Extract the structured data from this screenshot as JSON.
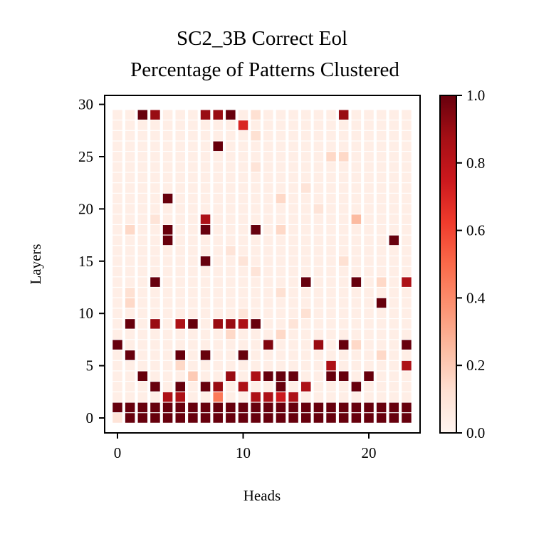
{
  "chart_data": {
    "type": "heatmap",
    "title": [
      "SC2_3B Correct Eol",
      "Percentage of Patterns Clustered"
    ],
    "xlabel": "Heads",
    "ylabel": "Layers",
    "xlim": [
      0,
      23
    ],
    "ylim": [
      0,
      30
    ],
    "x_ticks": [
      "0",
      "10",
      "20"
    ],
    "y_ticks": [
      "0",
      "5",
      "10",
      "15",
      "20",
      "25",
      "30"
    ],
    "colorbar": {
      "colormap": "Reds",
      "min": 0.0,
      "max": 1.0,
      "ticks": [
        "0.0",
        "0.2",
        "0.4",
        "0.6",
        "0.8",
        "1.0"
      ]
    },
    "background_value": 0.04,
    "cells": [
      [
        0,
        0,
        0.1
      ],
      [
        1,
        0,
        1.0
      ],
      [
        2,
        0,
        1.0
      ],
      [
        3,
        0,
        1.0
      ],
      [
        4,
        0,
        1.0
      ],
      [
        5,
        0,
        1.0
      ],
      [
        6,
        0,
        1.0
      ],
      [
        7,
        0,
        1.0
      ],
      [
        8,
        0,
        1.0
      ],
      [
        9,
        0,
        1.0
      ],
      [
        10,
        0,
        1.0
      ],
      [
        11,
        0,
        1.0
      ],
      [
        12,
        0,
        1.0
      ],
      [
        13,
        0,
        1.0
      ],
      [
        14,
        0,
        1.0
      ],
      [
        15,
        0,
        1.0
      ],
      [
        16,
        0,
        1.0
      ],
      [
        17,
        0,
        1.0
      ],
      [
        18,
        0,
        1.0
      ],
      [
        19,
        0,
        1.0
      ],
      [
        20,
        0,
        1.0
      ],
      [
        21,
        0,
        1.0
      ],
      [
        22,
        0,
        1.0
      ],
      [
        23,
        0,
        1.0
      ],
      [
        0,
        1,
        1.0
      ],
      [
        1,
        1,
        1.0
      ],
      [
        2,
        1,
        1.0
      ],
      [
        3,
        1,
        1.0
      ],
      [
        4,
        1,
        1.0
      ],
      [
        5,
        1,
        1.0
      ],
      [
        6,
        1,
        1.0
      ],
      [
        7,
        1,
        1.0
      ],
      [
        8,
        1,
        1.0
      ],
      [
        9,
        1,
        1.0
      ],
      [
        10,
        1,
        1.0
      ],
      [
        11,
        1,
        1.0
      ],
      [
        12,
        1,
        1.0
      ],
      [
        13,
        1,
        1.0
      ],
      [
        14,
        1,
        1.0
      ],
      [
        15,
        1,
        1.0
      ],
      [
        16,
        1,
        1.0
      ],
      [
        17,
        1,
        1.0
      ],
      [
        18,
        1,
        1.0
      ],
      [
        19,
        1,
        1.0
      ],
      [
        20,
        1,
        1.0
      ],
      [
        21,
        1,
        1.0
      ],
      [
        22,
        1,
        1.0
      ],
      [
        23,
        1,
        1.0
      ],
      [
        4,
        2,
        0.85
      ],
      [
        5,
        2,
        0.85
      ],
      [
        8,
        2,
        0.45
      ],
      [
        11,
        2,
        0.85
      ],
      [
        12,
        2,
        0.85
      ],
      [
        13,
        2,
        0.75
      ],
      [
        14,
        2,
        0.85
      ],
      [
        3,
        3,
        1.0
      ],
      [
        5,
        3,
        1.0
      ],
      [
        7,
        3,
        1.0
      ],
      [
        8,
        3,
        0.9
      ],
      [
        10,
        3,
        0.85
      ],
      [
        13,
        3,
        1.0
      ],
      [
        15,
        3,
        0.85
      ],
      [
        19,
        3,
        1.0
      ],
      [
        2,
        4,
        1.0
      ],
      [
        6,
        4,
        0.2
      ],
      [
        9,
        4,
        0.9
      ],
      [
        11,
        4,
        0.85
      ],
      [
        12,
        4,
        1.0
      ],
      [
        13,
        4,
        1.0
      ],
      [
        14,
        4,
        1.0
      ],
      [
        17,
        4,
        1.0
      ],
      [
        18,
        4,
        1.0
      ],
      [
        20,
        4,
        1.0
      ],
      [
        5,
        5,
        0.15
      ],
      [
        17,
        5,
        0.85
      ],
      [
        23,
        5,
        0.85
      ],
      [
        1,
        6,
        1.0
      ],
      [
        5,
        6,
        1.0
      ],
      [
        7,
        6,
        1.0
      ],
      [
        10,
        6,
        1.0
      ],
      [
        21,
        6,
        0.15
      ],
      [
        0,
        7,
        1.0
      ],
      [
        12,
        7,
        0.95
      ],
      [
        16,
        7,
        0.9
      ],
      [
        18,
        7,
        1.0
      ],
      [
        19,
        7,
        0.15
      ],
      [
        23,
        7,
        1.0
      ],
      [
        9,
        8,
        0.15
      ],
      [
        13,
        8,
        0.15
      ],
      [
        1,
        9,
        1.0
      ],
      [
        3,
        9,
        0.9
      ],
      [
        5,
        9,
        0.85
      ],
      [
        6,
        9,
        1.0
      ],
      [
        8,
        9,
        0.9
      ],
      [
        9,
        9,
        0.9
      ],
      [
        10,
        9,
        0.85
      ],
      [
        11,
        9,
        1.0
      ],
      [
        14,
        9,
        0.1
      ],
      [
        10,
        10,
        0.1
      ],
      [
        15,
        10,
        0.12
      ],
      [
        1,
        11,
        0.15
      ],
      [
        21,
        11,
        1.0
      ],
      [
        1,
        12,
        0.12
      ],
      [
        13,
        12,
        0.12
      ],
      [
        3,
        13,
        1.0
      ],
      [
        15,
        13,
        1.0
      ],
      [
        19,
        13,
        1.0
      ],
      [
        21,
        13,
        0.15
      ],
      [
        23,
        13,
        0.85
      ],
      [
        11,
        14,
        0.1
      ],
      [
        7,
        15,
        1.0
      ],
      [
        10,
        15,
        0.1
      ],
      [
        18,
        15,
        0.12
      ],
      [
        9,
        16,
        0.1
      ],
      [
        4,
        17,
        1.0
      ],
      [
        22,
        17,
        1.0
      ],
      [
        1,
        18,
        0.15
      ],
      [
        4,
        18,
        1.0
      ],
      [
        7,
        18,
        1.0
      ],
      [
        11,
        18,
        1.0
      ],
      [
        13,
        18,
        0.15
      ],
      [
        7,
        19,
        0.85
      ],
      [
        19,
        19,
        0.25
      ],
      [
        3,
        19,
        0.1
      ],
      [
        16,
        20,
        0.1
      ],
      [
        4,
        21,
        1.0
      ],
      [
        13,
        21,
        0.15
      ],
      [
        15,
        22,
        0.1
      ],
      [
        11,
        24,
        0.1
      ],
      [
        8,
        26,
        1.0
      ],
      [
        17,
        25,
        0.15
      ],
      [
        18,
        25,
        0.15
      ],
      [
        11,
        27,
        0.12
      ],
      [
        10,
        28,
        0.7
      ],
      [
        2,
        29,
        1.0
      ],
      [
        3,
        29,
        0.9
      ],
      [
        7,
        29,
        0.9
      ],
      [
        8,
        29,
        0.9
      ],
      [
        9,
        29,
        1.0
      ],
      [
        11,
        29,
        0.12
      ],
      [
        18,
        29,
        0.9
      ]
    ]
  }
}
